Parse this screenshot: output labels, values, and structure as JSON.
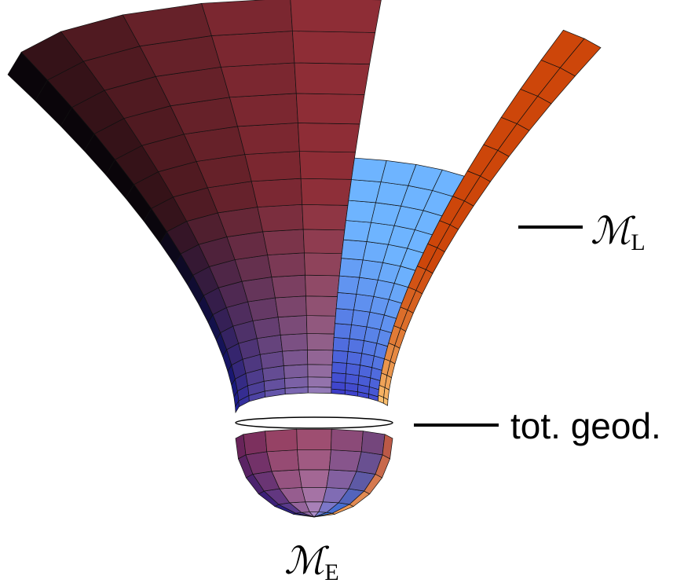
{
  "labels": {
    "lorentzian": {
      "symbol": "ℳ",
      "subscript": "L"
    },
    "geodesic": {
      "text": "tot. geod."
    },
    "euclidean": {
      "symbol": "ℳ",
      "subscript": "E"
    }
  }
}
